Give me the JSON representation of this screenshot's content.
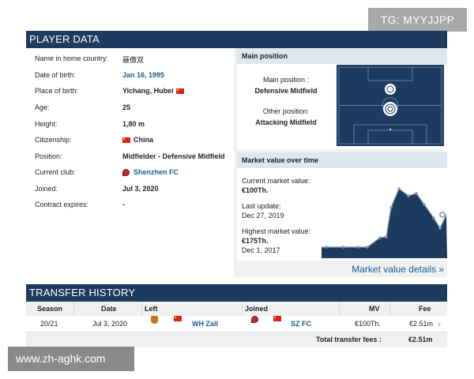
{
  "watermarks": {
    "top": "TG: MYYJJPP",
    "bottom": "www.zh-aghk.com"
  },
  "player_data": {
    "title": "PLAYER DATA",
    "rows": [
      {
        "label": "Name in home country:",
        "value": "聂傲双"
      },
      {
        "label": "Date of birth:",
        "value": "Jan 16, 1995"
      },
      {
        "label": "Place of birth:",
        "value": "Yichang, Hubei"
      },
      {
        "label": "Age:",
        "value": "25"
      },
      {
        "label": "Height:",
        "value": "1,80 m"
      },
      {
        "label": "Citizenship:",
        "value": "China"
      },
      {
        "label": "Position:",
        "value": "Midfielder - Defensive Midfield"
      },
      {
        "label": "Current club:",
        "value": "Shenzhen FC"
      },
      {
        "label": "Joined:",
        "value": "Jul 3, 2020"
      },
      {
        "label": "Contract expires:",
        "value": "-"
      }
    ]
  },
  "main_position": {
    "title": "Main position",
    "main_label": "Main position :",
    "main_value": "Defensive Midfield",
    "other_label": "Other position:",
    "other_value": "Attacking Midfield"
  },
  "market_value": {
    "title": "Market value over time",
    "current_label": "Current market value:",
    "current_value": "€100Th.",
    "update_label": "Last update:",
    "update_value": "Dec 27, 2019",
    "highest_label": "Highest market value:",
    "highest_value": "€175Th.",
    "highest_date": "Dec 1, 2017",
    "details_link": "Market value details »",
    "colors": {
      "area": "#1d3a5f",
      "line": "#7f98b4"
    }
  },
  "transfer_history": {
    "title": "TRANSFER HISTORY",
    "columns": {
      "season": "Season",
      "date": "Date",
      "left": "Left",
      "joined": "Joined",
      "mv": "MV",
      "fee": "Fee"
    },
    "rows": [
      {
        "season": "20/21",
        "date": "Jul 3, 2020",
        "left": "WH Zall",
        "joined": "SZ FC",
        "mv": "€100Th.",
        "fee": "€2.51m"
      }
    ],
    "total_label": "Total transfer fees :",
    "total_value": "€2.51m"
  }
}
